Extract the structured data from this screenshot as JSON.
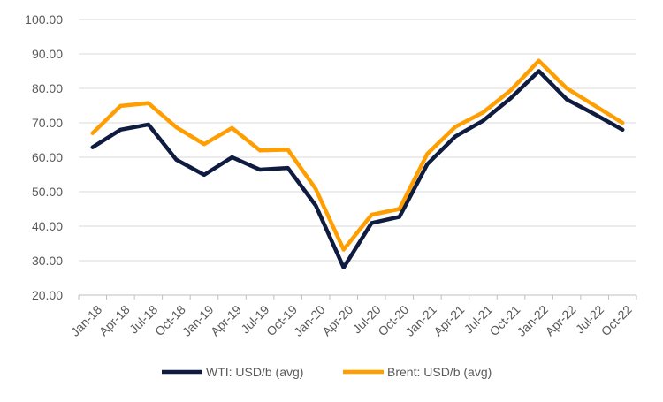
{
  "chart_data": {
    "type": "line",
    "title": "",
    "xlabel": "",
    "ylabel": "",
    "ylim": [
      20,
      100
    ],
    "yticks": [
      "20.00",
      "30.00",
      "40.00",
      "50.00",
      "60.00",
      "70.00",
      "80.00",
      "90.00",
      "100.00"
    ],
    "grid": true,
    "legend_position": "bottom",
    "categories": [
      "Jan-18",
      "Apr-18",
      "Jul-18",
      "Oct-18",
      "Jan-19",
      "Apr-19",
      "Jul-19",
      "Oct-19",
      "Jan-20",
      "Apr-20",
      "Jul-20",
      "Oct-20",
      "Jan-21",
      "Apr-21",
      "Jul-21",
      "Oct-21",
      "Jan-22",
      "Apr-22",
      "Jul-22",
      "Oct-22"
    ],
    "series": [
      {
        "name": "WTI: USD/b (avg)",
        "color": "#0f1c3f",
        "values": [
          62.9,
          68.0,
          69.5,
          59.3,
          54.9,
          60.0,
          56.4,
          56.9,
          46.0,
          28.0,
          40.9,
          42.7,
          58.0,
          66.0,
          70.6,
          77.2,
          85.0,
          76.8,
          72.5,
          68.0
        ]
      },
      {
        "name": "Brent: USD/b (avg)",
        "color": "#ff9e00",
        "values": [
          67.0,
          74.9,
          75.7,
          68.7,
          63.8,
          68.5,
          62.0,
          62.2,
          50.8,
          33.2,
          43.3,
          45.0,
          61.0,
          68.8,
          73.0,
          79.5,
          88.0,
          80.0,
          75.0,
          70.0
        ]
      }
    ]
  }
}
